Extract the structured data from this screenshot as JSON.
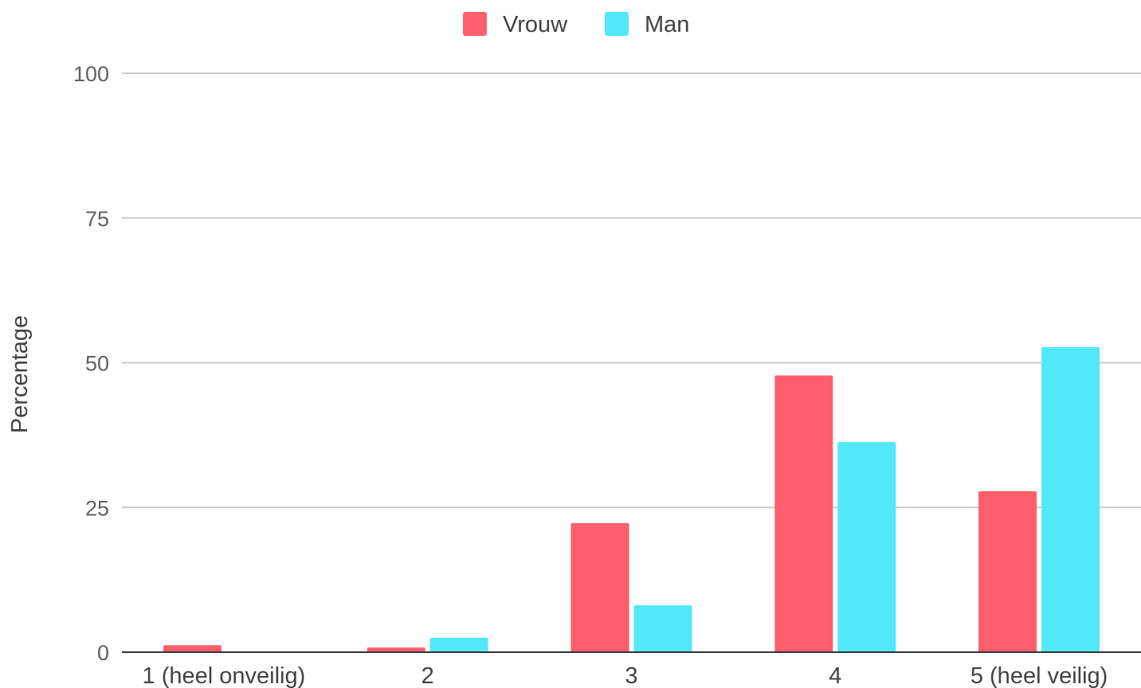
{
  "chart_data": {
    "type": "bar",
    "ylabel": "Percentage",
    "ylim": [
      0,
      100
    ],
    "yticks": [
      0,
      25,
      50,
      75,
      100
    ],
    "categories": [
      "1 (heel onveilig)",
      "2",
      "3",
      "4",
      "5 (heel veilig)"
    ],
    "series": [
      {
        "name": "Vrouw",
        "color": "#ff5e6c",
        "values": [
          1.2,
          0.8,
          22.3,
          47.8,
          27.8
        ]
      },
      {
        "name": "Man",
        "color": "#52e8f9",
        "values": [
          0,
          2.5,
          8.1,
          36.3,
          52.7
        ]
      }
    ],
    "legend": "top-center",
    "grid": true
  }
}
